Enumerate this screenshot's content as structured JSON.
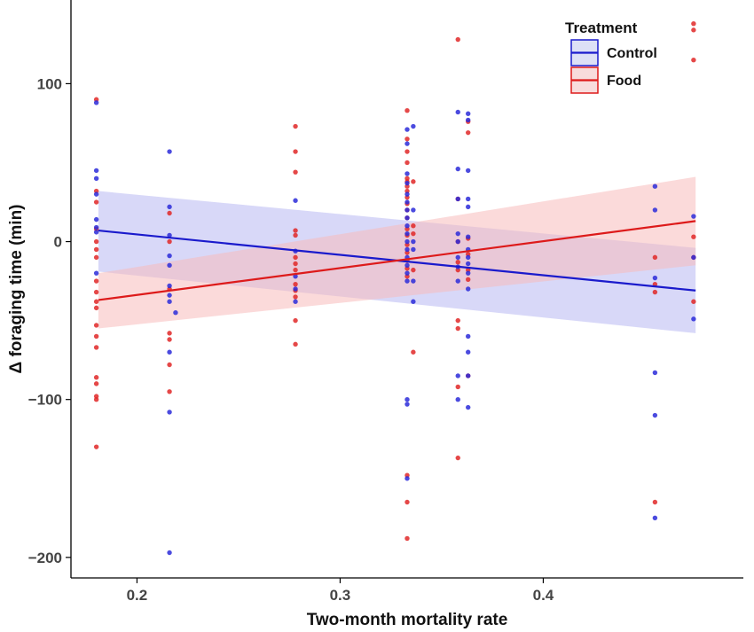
{
  "chart_data": {
    "type": "scatter",
    "xlabel": "Two-month mortality rate",
    "ylabel": "Δ foraging time (min)",
    "xlim": [
      0.1675,
      0.4985
    ],
    "ylim": [
      -213,
      153
    ],
    "x_ticks": [
      {
        "value": 0.2,
        "label": "0.2"
      },
      {
        "value": 0.3,
        "label": "0.3"
      },
      {
        "value": 0.4,
        "label": "0.4"
      }
    ],
    "y_ticks": [
      {
        "value": 100,
        "label": "100"
      },
      {
        "value": 0,
        "label": "0"
      },
      {
        "value": -100,
        "label": "−100"
      },
      {
        "value": -200,
        "label": "−200"
      }
    ],
    "grid": false,
    "legend": {
      "title": "Treatment",
      "position": "top-right",
      "entries": [
        {
          "label": "Control",
          "color": "#1a1acc",
          "fill": "#dde0f6"
        },
        {
          "label": "Food",
          "color": "#dd1a1a",
          "fill": "#f8dcdc"
        }
      ]
    },
    "series": [
      {
        "name": "Control",
        "color": "#2b2bd9",
        "line_color": "#1a1acc",
        "band_color": "#b8b8f2",
        "fit": {
          "x": [
            0.181,
            0.475
          ],
          "y": [
            7,
            -31
          ]
        },
        "band": {
          "x": [
            0.181,
            0.475
          ],
          "upper": [
            32,
            -4
          ],
          "lower": [
            -19,
            -58
          ]
        },
        "points": [
          [
            0.18,
            88
          ],
          [
            0.18,
            45
          ],
          [
            0.18,
            40
          ],
          [
            0.18,
            30
          ],
          [
            0.18,
            14
          ],
          [
            0.18,
            9
          ],
          [
            0.18,
            6
          ],
          [
            0.18,
            -20
          ],
          [
            0.216,
            57
          ],
          [
            0.216,
            22
          ],
          [
            0.216,
            4
          ],
          [
            0.216,
            -9
          ],
          [
            0.216,
            -15
          ],
          [
            0.216,
            -28
          ],
          [
            0.216,
            -34
          ],
          [
            0.216,
            -38
          ],
          [
            0.216,
            -70
          ],
          [
            0.216,
            -108
          ],
          [
            0.216,
            -197
          ],
          [
            0.219,
            -45
          ],
          [
            0.278,
            26
          ],
          [
            0.278,
            -6
          ],
          [
            0.278,
            -22
          ],
          [
            0.278,
            -30
          ],
          [
            0.278,
            -38
          ],
          [
            0.333,
            71
          ],
          [
            0.333,
            62
          ],
          [
            0.333,
            43
          ],
          [
            0.333,
            37
          ],
          [
            0.333,
            30
          ],
          [
            0.333,
            25
          ],
          [
            0.333,
            20
          ],
          [
            0.333,
            15
          ],
          [
            0.333,
            10
          ],
          [
            0.333,
            5
          ],
          [
            0.333,
            0
          ],
          [
            0.333,
            -5
          ],
          [
            0.333,
            -10
          ],
          [
            0.333,
            -15
          ],
          [
            0.333,
            -20
          ],
          [
            0.333,
            -25
          ],
          [
            0.333,
            -100
          ],
          [
            0.333,
            -103
          ],
          [
            0.333,
            -150
          ],
          [
            0.336,
            73
          ],
          [
            0.336,
            20
          ],
          [
            0.336,
            0
          ],
          [
            0.336,
            -5
          ],
          [
            0.336,
            -25
          ],
          [
            0.336,
            -38
          ],
          [
            0.358,
            82
          ],
          [
            0.358,
            46
          ],
          [
            0.358,
            27
          ],
          [
            0.358,
            5
          ],
          [
            0.358,
            0
          ],
          [
            0.358,
            -10
          ],
          [
            0.358,
            -16
          ],
          [
            0.358,
            -25
          ],
          [
            0.358,
            -85
          ],
          [
            0.358,
            -100
          ],
          [
            0.363,
            81
          ],
          [
            0.363,
            77
          ],
          [
            0.363,
            45
          ],
          [
            0.363,
            27
          ],
          [
            0.363,
            22
          ],
          [
            0.363,
            3
          ],
          [
            0.363,
            -5
          ],
          [
            0.363,
            -10
          ],
          [
            0.363,
            -14
          ],
          [
            0.363,
            -20
          ],
          [
            0.363,
            -30
          ],
          [
            0.363,
            -60
          ],
          [
            0.363,
            -70
          ],
          [
            0.363,
            -85
          ],
          [
            0.363,
            -105
          ],
          [
            0.455,
            35
          ],
          [
            0.455,
            20
          ],
          [
            0.455,
            -23
          ],
          [
            0.455,
            -83
          ],
          [
            0.455,
            -110
          ],
          [
            0.455,
            -175
          ],
          [
            0.474,
            16
          ],
          [
            0.474,
            -10
          ],
          [
            0.474,
            -49
          ]
        ]
      },
      {
        "name": "Food",
        "color": "#e02828",
        "line_color": "#dd1a1a",
        "band_color": "#f7bcbc",
        "fit": {
          "x": [
            0.181,
            0.475
          ],
          "y": [
            -37,
            13
          ]
        },
        "band": {
          "x": [
            0.181,
            0.475
          ],
          "upper": [
            -20,
            41
          ],
          "lower": [
            -55,
            -15
          ]
        },
        "points": [
          [
            0.18,
            90
          ],
          [
            0.18,
            32
          ],
          [
            0.18,
            25
          ],
          [
            0.18,
            8
          ],
          [
            0.18,
            0
          ],
          [
            0.18,
            -5
          ],
          [
            0.18,
            -10
          ],
          [
            0.18,
            -25
          ],
          [
            0.18,
            -32
          ],
          [
            0.18,
            -38
          ],
          [
            0.18,
            -42
          ],
          [
            0.18,
            -53
          ],
          [
            0.18,
            -60
          ],
          [
            0.18,
            -67
          ],
          [
            0.18,
            -86
          ],
          [
            0.18,
            -90
          ],
          [
            0.18,
            -98
          ],
          [
            0.18,
            -100
          ],
          [
            0.18,
            -130
          ],
          [
            0.216,
            18
          ],
          [
            0.216,
            0
          ],
          [
            0.216,
            -30
          ],
          [
            0.216,
            -58
          ],
          [
            0.216,
            -62
          ],
          [
            0.216,
            -78
          ],
          [
            0.216,
            -95
          ],
          [
            0.278,
            73
          ],
          [
            0.278,
            57
          ],
          [
            0.278,
            44
          ],
          [
            0.278,
            7
          ],
          [
            0.278,
            4
          ],
          [
            0.278,
            -10
          ],
          [
            0.278,
            -14
          ],
          [
            0.278,
            -18
          ],
          [
            0.278,
            -27
          ],
          [
            0.278,
            -31
          ],
          [
            0.278,
            -35
          ],
          [
            0.278,
            -50
          ],
          [
            0.278,
            -65
          ],
          [
            0.333,
            83
          ],
          [
            0.333,
            65
          ],
          [
            0.333,
            57
          ],
          [
            0.333,
            50
          ],
          [
            0.333,
            40
          ],
          [
            0.333,
            38
          ],
          [
            0.333,
            35
          ],
          [
            0.333,
            32
          ],
          [
            0.333,
            28
          ],
          [
            0.333,
            24
          ],
          [
            0.333,
            20
          ],
          [
            0.333,
            15
          ],
          [
            0.333,
            8
          ],
          [
            0.333,
            4
          ],
          [
            0.333,
            -2
          ],
          [
            0.333,
            -7
          ],
          [
            0.333,
            -12
          ],
          [
            0.333,
            -17
          ],
          [
            0.333,
            -22
          ],
          [
            0.333,
            -148
          ],
          [
            0.333,
            -165
          ],
          [
            0.333,
            -188
          ],
          [
            0.336,
            38
          ],
          [
            0.336,
            10
          ],
          [
            0.336,
            5
          ],
          [
            0.336,
            -18
          ],
          [
            0.336,
            -70
          ],
          [
            0.358,
            128
          ],
          [
            0.358,
            27
          ],
          [
            0.358,
            0
          ],
          [
            0.358,
            -13
          ],
          [
            0.358,
            -18
          ],
          [
            0.358,
            -50
          ],
          [
            0.358,
            -55
          ],
          [
            0.358,
            -92
          ],
          [
            0.358,
            -137
          ],
          [
            0.363,
            76
          ],
          [
            0.363,
            69
          ],
          [
            0.363,
            2
          ],
          [
            0.363,
            -8
          ],
          [
            0.363,
            -18
          ],
          [
            0.363,
            -24
          ],
          [
            0.363,
            -85
          ],
          [
            0.455,
            -10
          ],
          [
            0.455,
            -27
          ],
          [
            0.455,
            -32
          ],
          [
            0.455,
            -165
          ],
          [
            0.474,
            138
          ],
          [
            0.474,
            134
          ],
          [
            0.474,
            115
          ],
          [
            0.474,
            3
          ],
          [
            0.474,
            -10
          ],
          [
            0.474,
            -38
          ]
        ]
      }
    ]
  }
}
